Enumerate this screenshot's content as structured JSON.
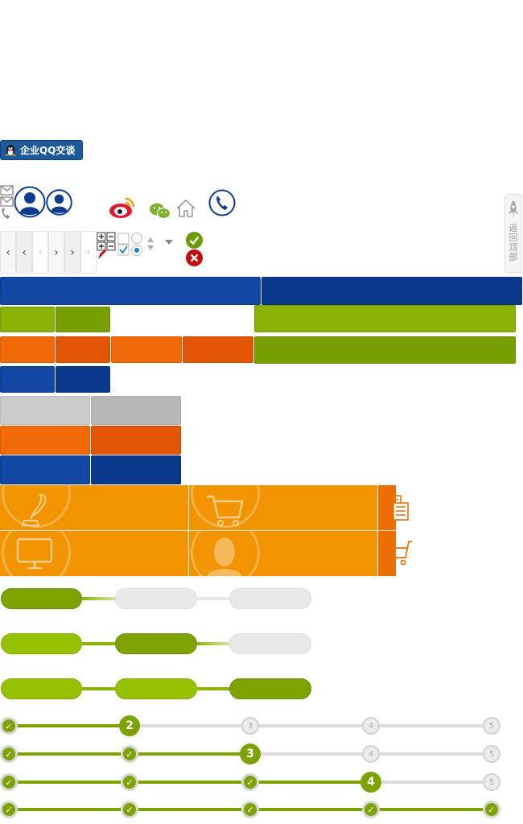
{
  "qq_button": {
    "label": "企业QQ交谈"
  },
  "back_to_top": {
    "label": "返回顶部"
  },
  "step_dots": {
    "row1": [
      "✓",
      "2",
      "3",
      "4",
      "5"
    ],
    "row2": [
      "✓",
      "✓",
      "3",
      "4",
      "5"
    ],
    "row3": [
      "✓",
      "✓",
      "✓",
      "4",
      "5"
    ],
    "row4": [
      "✓",
      "✓",
      "✓",
      "✓",
      "✓"
    ]
  },
  "colors": {
    "brand_blue": "#1248a3",
    "brand_blue_dark": "#0b3a8d",
    "brand_green": "#8ab306",
    "brand_orange": "#f06a0a",
    "tile_orange": "#f29400"
  }
}
